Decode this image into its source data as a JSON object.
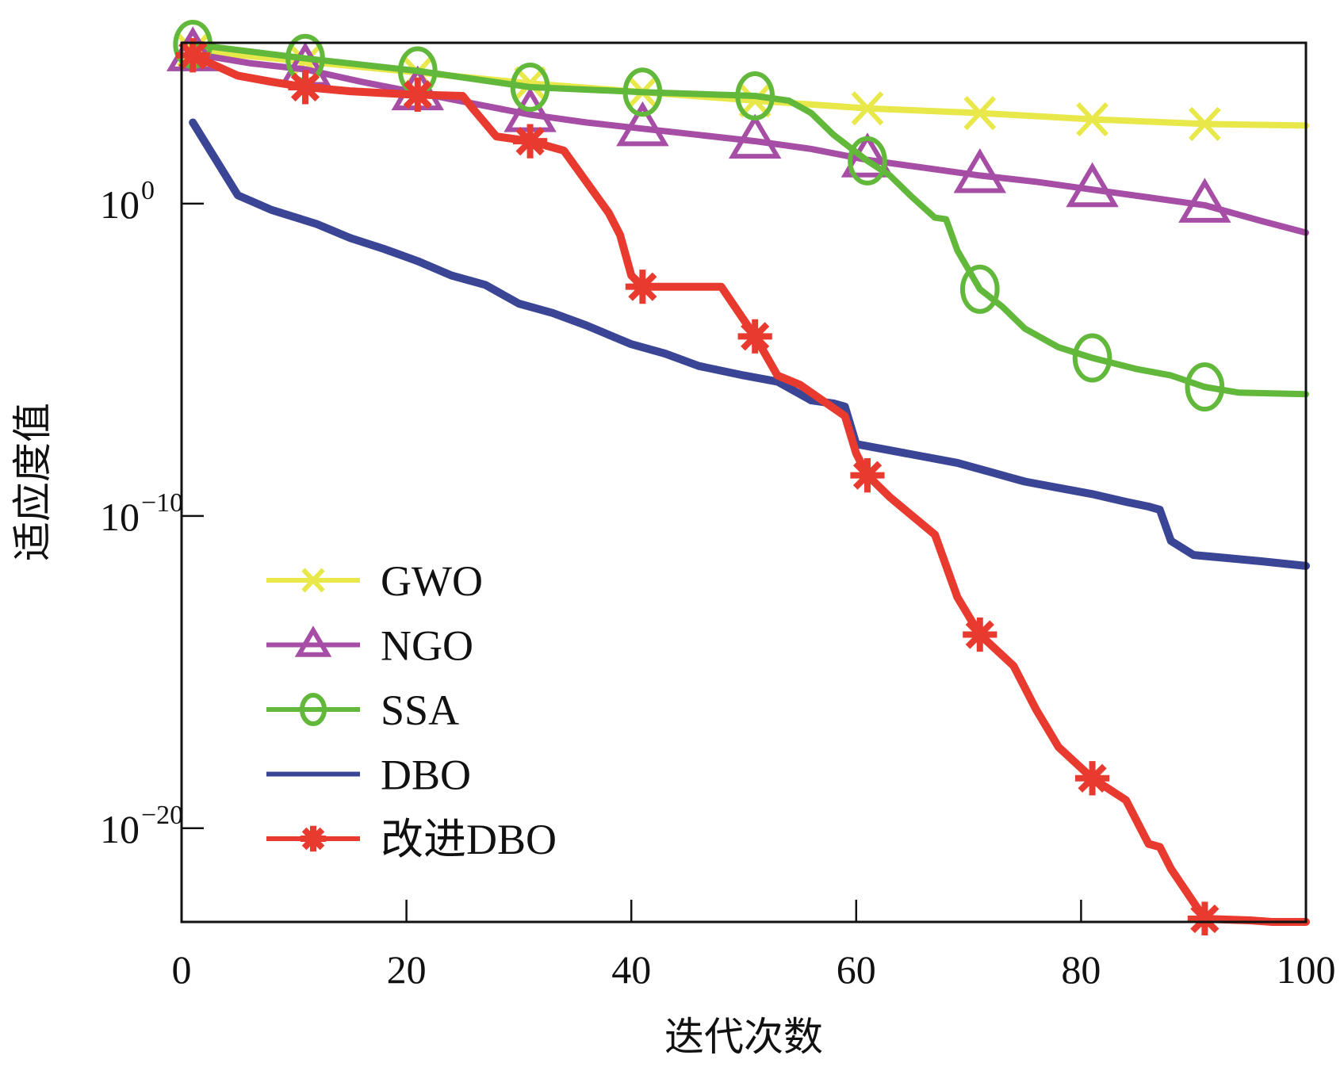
{
  "chart_data": {
    "type": "line",
    "title": "",
    "xlabel": "迭代次数",
    "ylabel": "适应度值",
    "xlim": [
      0,
      100
    ],
    "ylim_log10": [
      -23,
      5.15
    ],
    "yscale": "log",
    "grid": false,
    "legend_position": "lower-left",
    "x_ticks": [
      0,
      20,
      40,
      60,
      80,
      100
    ],
    "x_tick_labels": [
      "0",
      "20",
      "40",
      "60",
      "80",
      "100"
    ],
    "y_ticks_log10": [
      0,
      -10,
      -20
    ],
    "y_tick_labels": [
      {
        "base": "10",
        "exp": "0"
      },
      {
        "base": "10",
        "exp": "−10"
      },
      {
        "base": "10",
        "exp": "−20"
      }
    ],
    "marker_iterations": [
      1,
      11,
      21,
      31,
      41,
      51,
      61,
      71,
      81,
      91
    ],
    "series": [
      {
        "name": "GWO",
        "color": "#e8e84a",
        "marker": "x",
        "x": [
          1,
          11,
          21,
          31,
          41,
          51,
          61,
          71,
          81,
          91,
          100
        ],
        "log10": [
          4.9,
          4.55,
          4.2,
          3.85,
          3.57,
          3.3,
          3.05,
          2.9,
          2.7,
          2.55,
          2.5
        ]
      },
      {
        "name": "NGO",
        "color": "#a64ea6",
        "marker": "triangle",
        "x": [
          1,
          6,
          11,
          16,
          21,
          26,
          31,
          36,
          41,
          46,
          51,
          56,
          61,
          66,
          71,
          76,
          81,
          86,
          91,
          96,
          100
        ],
        "log10": [
          4.8,
          4.5,
          4.3,
          3.9,
          3.55,
          3.2,
          2.85,
          2.6,
          2.4,
          2.2,
          2.0,
          1.75,
          1.4,
          1.15,
          0.9,
          0.7,
          0.45,
          0.2,
          -0.05,
          -0.55,
          -0.93
        ]
      },
      {
        "name": "SSA",
        "color": "#62b83a",
        "marker": "circle",
        "x": [
          1,
          11,
          21,
          31,
          41,
          51,
          54,
          56,
          58,
          61,
          63,
          65,
          67,
          68,
          69,
          71,
          73,
          75,
          78,
          81,
          85,
          88,
          91,
          94,
          100
        ],
        "log10": [
          5.1,
          4.65,
          4.25,
          3.73,
          3.57,
          3.45,
          3.3,
          2.9,
          2.2,
          1.37,
          0.9,
          0.2,
          -0.45,
          -0.5,
          -1.5,
          -2.74,
          -3.3,
          -4.0,
          -4.6,
          -4.94,
          -5.3,
          -5.5,
          -5.87,
          -6.05,
          -6.1
        ]
      },
      {
        "name": "DBO",
        "color": "#3b4596",
        "marker": "none",
        "x": [
          1,
          5,
          8,
          12,
          15,
          18,
          21,
          24,
          27,
          30,
          33,
          36,
          40,
          43,
          46,
          50,
          53,
          56,
          58,
          59,
          60,
          63,
          66,
          69,
          72,
          75,
          78,
          81,
          84,
          86,
          87,
          88,
          90,
          93,
          96,
          100
        ],
        "log10": [
          2.6,
          0.27,
          -0.2,
          -0.65,
          -1.1,
          -1.45,
          -1.84,
          -2.3,
          -2.6,
          -3.2,
          -3.5,
          -3.9,
          -4.5,
          -4.8,
          -5.2,
          -5.5,
          -5.7,
          -6.3,
          -6.4,
          -6.5,
          -7.7,
          -7.9,
          -8.1,
          -8.3,
          -8.6,
          -8.9,
          -9.1,
          -9.3,
          -9.55,
          -9.7,
          -9.8,
          -10.8,
          -11.25,
          -11.35,
          -11.45,
          -11.6
        ]
      },
      {
        "name": "改进DBO",
        "color": "#e83a2e",
        "marker": "asterisk",
        "x": [
          1,
          5,
          8,
          11,
          15,
          20,
          25,
          26,
          28,
          31,
          34,
          36,
          38,
          39,
          40,
          41,
          45,
          48,
          51,
          53,
          55,
          57,
          59,
          60,
          61,
          63,
          65,
          67,
          69,
          71,
          74,
          76,
          78,
          81,
          84,
          86,
          87,
          88,
          91,
          95,
          97,
          100
        ],
        "log10": [
          4.75,
          4.1,
          3.9,
          3.73,
          3.6,
          3.5,
          3.45,
          3.0,
          2.15,
          2.0,
          1.7,
          0.7,
          -0.3,
          -1.0,
          -2.3,
          -2.66,
          -2.66,
          -2.66,
          -4.25,
          -5.5,
          -5.8,
          -6.3,
          -6.8,
          -8.0,
          -8.7,
          -9.4,
          -10.0,
          -10.6,
          -12.6,
          -13.8,
          -14.8,
          -16.2,
          -17.4,
          -18.4,
          -19.1,
          -20.5,
          -20.6,
          -21.3,
          -22.9,
          -22.95,
          -23.0,
          -23.0
        ]
      }
    ]
  }
}
